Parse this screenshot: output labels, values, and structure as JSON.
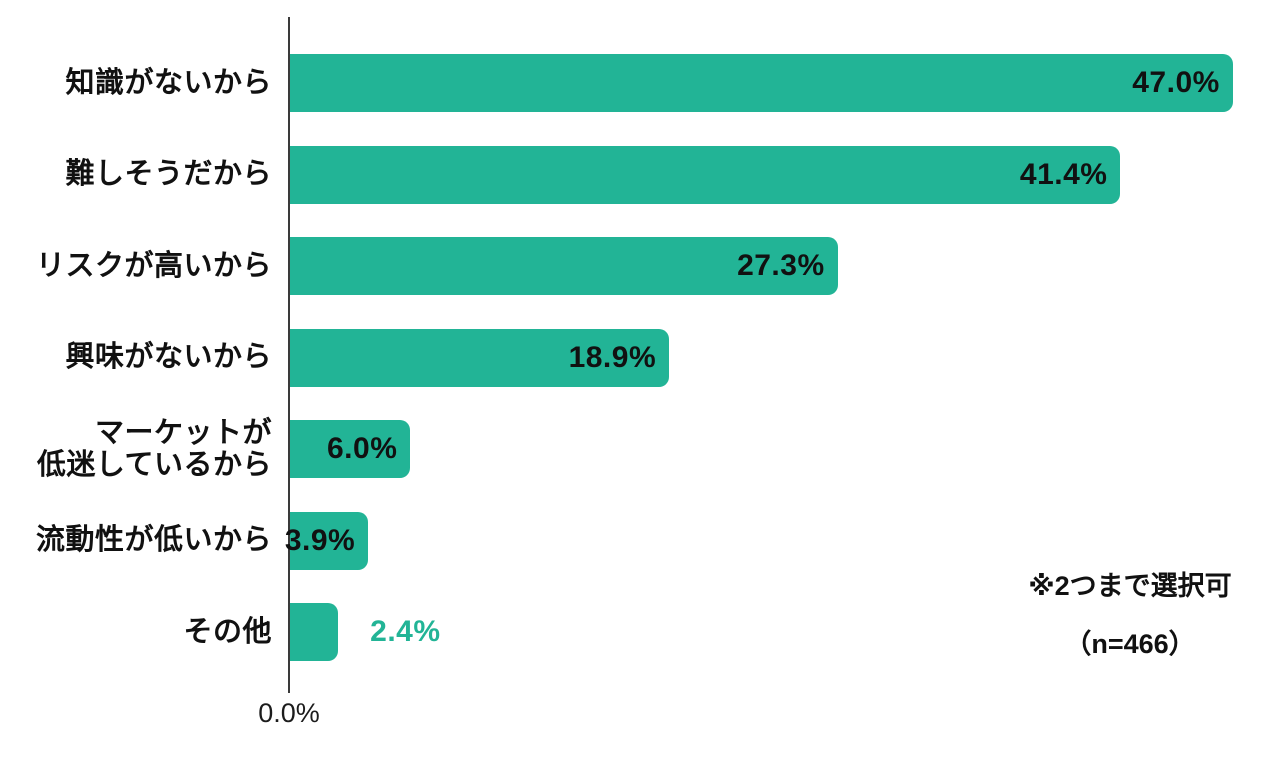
{
  "chart_data": {
    "type": "bar",
    "orientation": "horizontal",
    "title": "",
    "xlabel": "",
    "ylabel": "",
    "categories": [
      "知識がないから",
      "難しそうだから",
      "リスクが高いから",
      "興味がないから",
      "マーケットが\n低迷しているから",
      "流動性が低いから",
      "その他"
    ],
    "values": [
      47.0,
      41.4,
      27.3,
      18.9,
      6.0,
      3.9,
      2.4
    ],
    "value_labels": [
      "47.0%",
      "41.4%",
      "27.3%",
      "18.9%",
      "6.0%",
      "3.9%",
      "2.4%"
    ],
    "value_label_positions": [
      "inside",
      "inside",
      "inside",
      "inside",
      "inside",
      "inside",
      "outside"
    ],
    "xlim": [
      0,
      50
    ],
    "x_axis_tick": "0.0%",
    "grid": false,
    "legend": false,
    "bar_color": "#22b496",
    "inside_label_color": "#111111",
    "outside_label_color": "#22b496",
    "annotations": [
      "※2つまで選択可",
      "（n=466）"
    ]
  }
}
